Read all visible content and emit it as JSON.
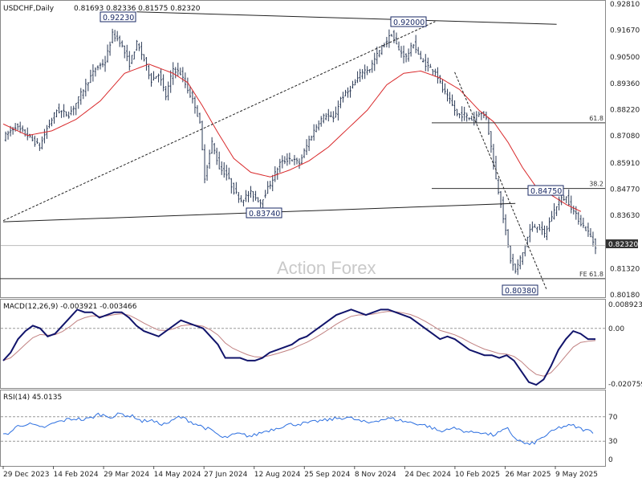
{
  "header": {
    "symbol": "USDCHF,Daily",
    "ohlc": "0.81693 0.82336 0.81575 0.82320"
  },
  "watermark": "Action Forex",
  "colors": {
    "candle": "#2b3a56",
    "ma": "#d9292b",
    "macd": "#11146b",
    "signal": "#c08080",
    "rsi": "#2c6fe0",
    "level": "#333333"
  },
  "chart_data": [
    {
      "type": "line",
      "name": "price",
      "ylim": [
        0.8018,
        0.9281
      ],
      "y_ticks": [
        "0.92810",
        "0.91670",
        "0.90500",
        "0.89360",
        "0.88220",
        "0.87080",
        "0.85910",
        "0.84770",
        "0.83630",
        "0.82320",
        "0.81320",
        "0.80180"
      ],
      "x_ticks": [
        "29 Dec 2023",
        "14 Feb 2024",
        "29 Mar 2024",
        "14 May 2024",
        "27 Jun 2024",
        "12 Aug 2024",
        "25 Sep 2024",
        "8 Nov 2024",
        "24 Dec 2024",
        "10 Feb 2025",
        "26 Mar 2025",
        "9 May 2025"
      ],
      "current_price": "0.82320",
      "close_path": [
        [
          0,
          0.87
        ],
        [
          5,
          0.875
        ],
        [
          10,
          0.871
        ],
        [
          15,
          0.866
        ],
        [
          18,
          0.874
        ],
        [
          22,
          0.882
        ],
        [
          27,
          0.88
        ],
        [
          30,
          0.885
        ],
        [
          34,
          0.893
        ],
        [
          38,
          0.9
        ],
        [
          42,
          0.903
        ],
        [
          45,
          0.915
        ],
        [
          48,
          0.912
        ],
        [
          52,
          0.902
        ],
        [
          55,
          0.911
        ],
        [
          58,
          0.904
        ],
        [
          61,
          0.895
        ],
        [
          64,
          0.898
        ],
        [
          67,
          0.888
        ],
        [
          70,
          0.9
        ],
        [
          73,
          0.898
        ],
        [
          76,
          0.891
        ],
        [
          79,
          0.884
        ],
        [
          81,
          0.876
        ],
        [
          83,
          0.853
        ],
        [
          86,
          0.868
        ],
        [
          89,
          0.857
        ],
        [
          92,
          0.854
        ],
        [
          95,
          0.847
        ],
        [
          98,
          0.843
        ],
        [
          102,
          0.846
        ],
        [
          106,
          0.842
        ],
        [
          110,
          0.85
        ],
        [
          114,
          0.859
        ],
        [
          118,
          0.861
        ],
        [
          122,
          0.859
        ],
        [
          126,
          0.869
        ],
        [
          130,
          0.877
        ],
        [
          133,
          0.88
        ],
        [
          136,
          0.878
        ],
        [
          139,
          0.887
        ],
        [
          142,
          0.89
        ],
        [
          145,
          0.894
        ],
        [
          148,
          0.899
        ],
        [
          151,
          0.9
        ],
        [
          154,
          0.906
        ],
        [
          157,
          0.911
        ],
        [
          160,
          0.915
        ],
        [
          163,
          0.908
        ],
        [
          166,
          0.905
        ],
        [
          169,
          0.911
        ],
        [
          172,
          0.904
        ],
        [
          175,
          0.901
        ],
        [
          178,
          0.899
        ],
        [
          181,
          0.891
        ],
        [
          184,
          0.886
        ],
        [
          187,
          0.88
        ],
        [
          190,
          0.88
        ],
        [
          193,
          0.878
        ],
        [
          196,
          0.881
        ],
        [
          199,
          0.879
        ],
        [
          201,
          0.866
        ],
        [
          203,
          0.852
        ],
        [
          205,
          0.842
        ],
        [
          207,
          0.829
        ],
        [
          209,
          0.817
        ],
        [
          211,
          0.812
        ],
        [
          214,
          0.82
        ],
        [
          217,
          0.83
        ],
        [
          220,
          0.832
        ],
        [
          223,
          0.828
        ],
        [
          226,
          0.836
        ],
        [
          229,
          0.843
        ],
        [
          232,
          0.844
        ],
        [
          235,
          0.838
        ],
        [
          238,
          0.833
        ],
        [
          241,
          0.829
        ],
        [
          244,
          0.823
        ]
      ],
      "ma_path": [
        [
          0,
          0.876
        ],
        [
          10,
          0.871
        ],
        [
          20,
          0.873
        ],
        [
          30,
          0.878
        ],
        [
          40,
          0.886
        ],
        [
          50,
          0.898
        ],
        [
          60,
          0.902
        ],
        [
          70,
          0.898
        ],
        [
          76,
          0.894
        ],
        [
          82,
          0.884
        ],
        [
          88,
          0.873
        ],
        [
          95,
          0.861
        ],
        [
          102,
          0.855
        ],
        [
          110,
          0.853
        ],
        [
          118,
          0.856
        ],
        [
          126,
          0.86
        ],
        [
          134,
          0.866
        ],
        [
          142,
          0.874
        ],
        [
          150,
          0.882
        ],
        [
          158,
          0.893
        ],
        [
          165,
          0.898
        ],
        [
          172,
          0.899
        ],
        [
          180,
          0.896
        ],
        [
          188,
          0.891
        ],
        [
          196,
          0.882
        ],
        [
          202,
          0.877
        ],
        [
          208,
          0.868
        ],
        [
          214,
          0.857
        ],
        [
          220,
          0.848
        ],
        [
          226,
          0.845
        ],
        [
          232,
          0.841
        ],
        [
          238,
          0.838
        ]
      ],
      "levels": [
        {
          "label": "61.8",
          "price": 0.8765
        },
        {
          "label": "38.2",
          "price": 0.848
        },
        {
          "label": "FE 61.8",
          "price": 0.8088
        }
      ],
      "callouts": [
        "0.92230",
        "0.92000",
        "0.84750",
        "0.83740",
        "0.80380"
      ],
      "trendlines": [
        {
          "style": "solid",
          "from": [
            0,
            0.8335
          ],
          "to": [
            211,
            0.8415
          ]
        },
        {
          "style": "solid",
          "from": [
            55,
            0.9247
          ],
          "to": [
            228,
            0.9193
          ]
        },
        {
          "style": "dashed",
          "from": [
            0,
            0.834
          ],
          "to": [
            178,
            0.9205
          ]
        },
        {
          "style": "dashed",
          "from": [
            186,
            0.8985
          ],
          "to": [
            224,
            0.8038
          ]
        }
      ]
    },
    {
      "type": "line",
      "name": "macd",
      "title": "MACD(12,26,9) -0.003921 -0.003466",
      "ylim": [
        -0.0207,
        0.0089
      ],
      "y_ticks": [
        "0.008923",
        "0.00",
        "-0.020759"
      ],
      "values": [
        -0.012,
        -0.009,
        -0.004,
        -0.001,
        0.001,
        0.0,
        -0.003,
        -0.002,
        0.001,
        0.004,
        0.007,
        0.006,
        0.006,
        0.004,
        0.005,
        0.006,
        0.006,
        0.004,
        0.001,
        -0.001,
        -0.002,
        -0.003,
        -0.001,
        0.001,
        0.003,
        0.002,
        0.001,
        0.0,
        -0.003,
        -0.006,
        -0.011,
        -0.011,
        -0.011,
        -0.012,
        -0.012,
        -0.011,
        -0.009,
        -0.008,
        -0.007,
        -0.006,
        -0.004,
        -0.003,
        -0.001,
        0.001,
        0.003,
        0.005,
        0.006,
        0.007,
        0.006,
        0.005,
        0.006,
        0.007,
        0.007,
        0.006,
        0.005,
        0.004,
        0.002,
        0.0,
        -0.002,
        -0.004,
        -0.003,
        -0.004,
        -0.006,
        -0.008,
        -0.009,
        -0.01,
        -0.01,
        -0.011,
        -0.01,
        -0.012,
        -0.016,
        -0.02,
        -0.021,
        -0.019,
        -0.014,
        -0.008,
        -0.004,
        -0.001,
        -0.002,
        -0.004,
        -0.004
      ]
    },
    {
      "type": "line",
      "name": "rsi",
      "title": "RSI(14) 45.0135",
      "ylim": [
        0,
        100
      ],
      "y_ticks": [
        "70",
        "30",
        "0"
      ],
      "values": [
        40,
        45,
        55,
        58,
        57,
        52,
        54,
        60,
        63,
        66,
        67,
        65,
        68,
        74,
        72,
        70,
        75,
        72,
        70,
        62,
        65,
        60,
        58,
        62,
        70,
        66,
        60,
        55,
        50,
        44,
        35,
        38,
        42,
        40,
        38,
        43,
        47,
        50,
        54,
        57,
        58,
        59,
        60,
        63,
        64,
        66,
        68,
        69,
        66,
        62,
        60,
        64,
        66,
        67,
        65,
        62,
        60,
        58,
        55,
        50,
        45,
        52,
        50,
        47,
        44,
        46,
        42,
        40,
        45,
        50,
        35,
        28,
        24,
        30,
        38,
        45,
        52,
        55,
        55,
        50,
        47,
        45
      ]
    }
  ]
}
